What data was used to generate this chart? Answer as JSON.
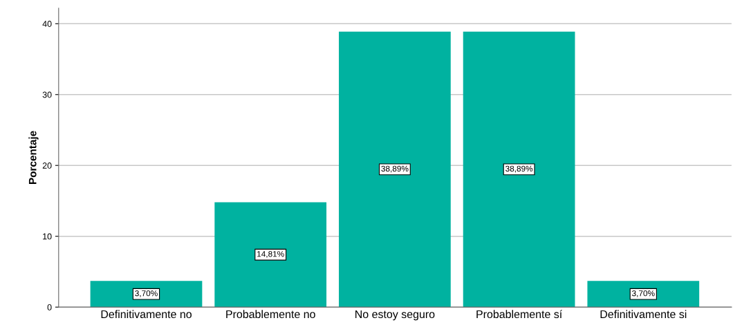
{
  "chart_data": {
    "type": "bar",
    "ylabel": "Porcentaje",
    "categories": [
      "Definitivamente no",
      "Probablemente no",
      "No estoy seguro",
      "Probablemente sí",
      "Definitivamente si"
    ],
    "values": [
      3.7,
      14.81,
      38.89,
      38.89,
      3.7
    ],
    "value_labels": [
      "3,70%",
      "14,81%",
      "38,89%",
      "38,89%",
      "3,70%"
    ],
    "color": "#00b2a0",
    "ylim": [
      0,
      42.2
    ],
    "yticks": [
      0,
      10,
      20,
      30,
      40
    ],
    "grid": "y"
  }
}
